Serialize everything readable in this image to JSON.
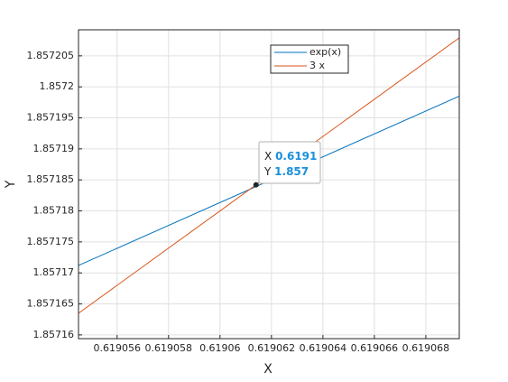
{
  "chart_data": {
    "type": "line",
    "x": [
      0.6190545,
      0.6190693
    ],
    "series": [
      {
        "name": "exp(x)",
        "color": "#0072bd",
        "values": [
          1.8571712,
          1.8571985
        ]
      },
      {
        "name": "3 x",
        "color": "#d95319",
        "values": [
          1.8571635,
          1.8572079
        ]
      }
    ],
    "xlabel": "X",
    "ylabel": "Y",
    "xlim": [
      0.6190545,
      0.6190693
    ],
    "ylim": [
      1.8571594,
      1.8572092
    ],
    "xticks": [
      0.619056,
      0.619058,
      0.61906,
      0.619062,
      0.619064,
      0.619066,
      0.619068
    ],
    "yticks": [
      1.85716,
      1.857165,
      1.85717,
      1.857175,
      1.85718,
      1.857185,
      1.85719,
      1.857195,
      1.8572,
      1.857205
    ],
    "grid": true,
    "datatip": {
      "x_prefix": "X",
      "y_prefix": "Y",
      "x": {
        "value": 0.6190614,
        "label": "0.6191"
      },
      "y": {
        "value": 1.8571842,
        "label": "1.857"
      }
    }
  }
}
